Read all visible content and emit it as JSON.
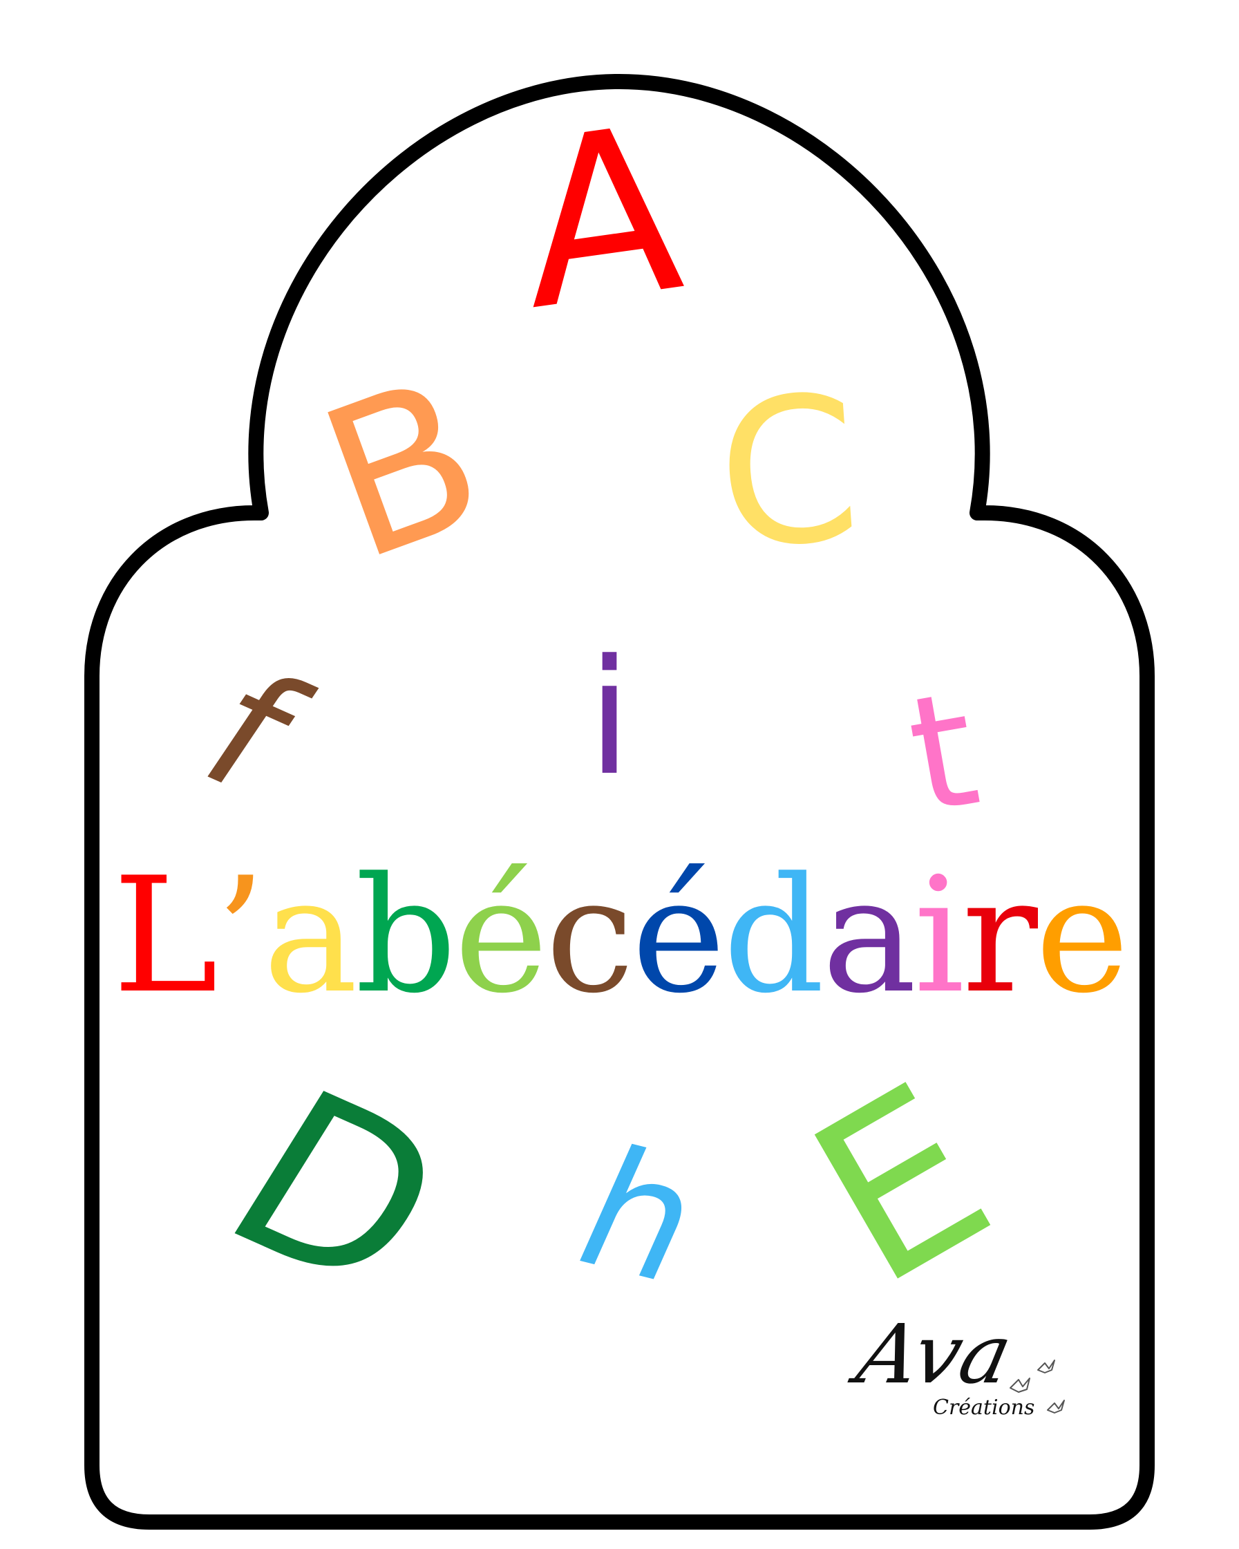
{
  "page": {
    "background_color": "#ffffff",
    "frame_color": "#000000"
  },
  "title": {
    "characters": [
      {
        "char": "L",
        "color": "#ff0000"
      },
      {
        "char": "’",
        "color": "#f7941d"
      },
      {
        "char": "a",
        "color": "#ffe04c"
      },
      {
        "char": "b",
        "color": "#00a651"
      },
      {
        "char": "é",
        "color": "#8ed14c"
      },
      {
        "char": "c",
        "color": "#7a4a2b"
      },
      {
        "char": "é",
        "color": "#0047ab"
      },
      {
        "char": "d",
        "color": "#3fb6f5"
      },
      {
        "char": "a",
        "color": "#7030a0"
      },
      {
        "char": "i",
        "color": "#ff74c8"
      },
      {
        "char": "r",
        "color": "#e8000b"
      },
      {
        "char": "e",
        "color": "#ff9e00"
      }
    ]
  },
  "decorative_letters": {
    "A": {
      "text": "A",
      "color": "#ff0000"
    },
    "B": {
      "text": "B",
      "color": "#ff9a52"
    },
    "C": {
      "text": "C",
      "color": "#ffe066"
    },
    "f": {
      "text": "f",
      "color": "#7a4a2b"
    },
    "i": {
      "text": "i",
      "color": "#7030a0"
    },
    "t": {
      "text": "t",
      "color": "#ff74c8"
    },
    "D": {
      "text": "D",
      "color": "#0a7d38"
    },
    "h": {
      "text": "h",
      "color": "#3fb6f5"
    },
    "E": {
      "text": "E",
      "color": "#7fd94f"
    }
  },
  "logo": {
    "name": "Ava",
    "subtitle": "Créations",
    "icon": "bird-icon",
    "color": "#111111"
  }
}
